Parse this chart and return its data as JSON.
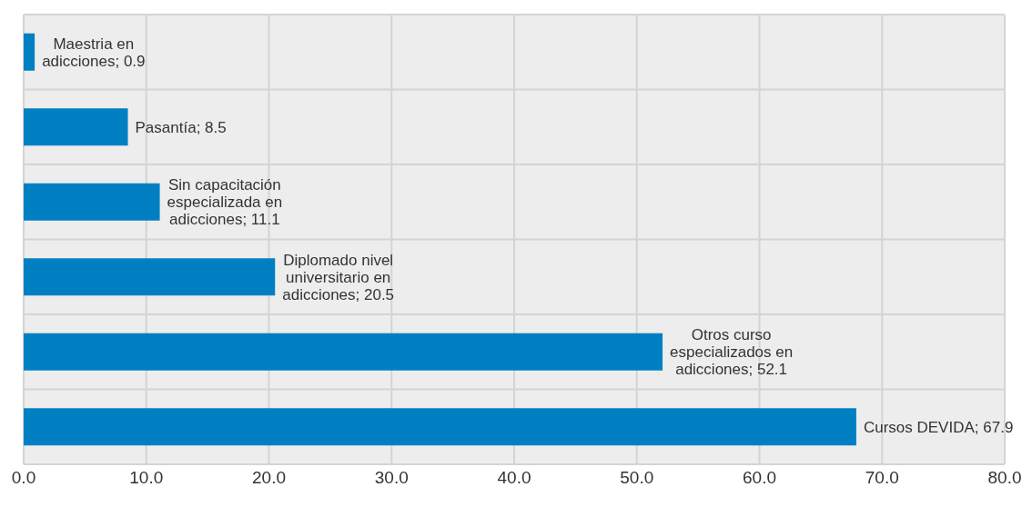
{
  "chart_data": {
    "type": "bar",
    "orientation": "horizontal",
    "categories": [
      null,
      null,
      null,
      null,
      null,
      null
    ],
    "values": [
      0.9,
      8.5,
      11.1,
      20.5,
      52.1,
      67.9
    ],
    "color": "#0080c3",
    "value_labels": [
      "Maestria en adicciones; 0.9",
      "Pasantía; 8.5",
      "Sin capacitación especializada en adicciones; 11.1",
      "Diplomado nivel universitario en adicciones; 20.5",
      "Otros curso especializados en adicciones; 52.1",
      "Cursos DEVIDA; 67.9"
    ],
    "xlim": [
      0,
      80
    ],
    "xticks": [
      {
        "value": 0,
        "label": "0.0"
      },
      {
        "value": 10,
        "label": "10.0"
      },
      {
        "value": 20,
        "label": "20.0"
      },
      {
        "value": 30,
        "label": "30.0"
      },
      {
        "value": 40,
        "label": "40.0"
      },
      {
        "value": 50,
        "label": "50.0"
      },
      {
        "value": 60,
        "label": "60.0"
      },
      {
        "value": 70,
        "label": "70.0"
      },
      {
        "value": 80,
        "label": "80.0"
      }
    ],
    "grid": true,
    "tick_labels": "x"
  }
}
